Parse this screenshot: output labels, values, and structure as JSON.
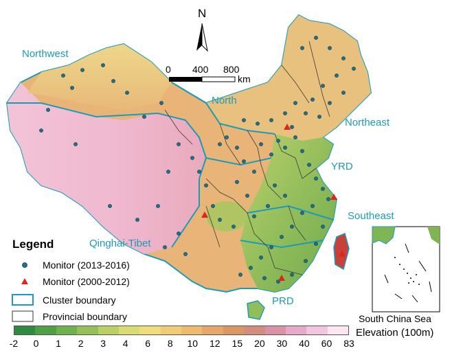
{
  "regions": {
    "northwest": "Northwest",
    "north": "North",
    "northeast": "Northeast",
    "yrd": "YRD",
    "southeast": "Southeast",
    "qinghai_tibet": "Qinghai-Tibet",
    "prd": "PRD"
  },
  "north_arrow": {
    "label": "N"
  },
  "scale_bar": {
    "tick0": "0",
    "tick1": "400",
    "tick2": "800",
    "unit": "km"
  },
  "legend": {
    "title": "Legend",
    "items": [
      {
        "label": "Monitor (2013-2016)",
        "symbol": "circle",
        "color": "#1f6f8b"
      },
      {
        "label": "Monitor (2000-2012)",
        "symbol": "triangle",
        "color": "#e0241e"
      },
      {
        "label": "Cluster boundary",
        "symbol": "box",
        "color": "#1a9bb7"
      },
      {
        "label": "Provincial boundary",
        "symbol": "box",
        "color": "#333333"
      }
    ]
  },
  "inset": {
    "caption": "South China Sea"
  },
  "colorbar": {
    "label": "Elevation (100m)",
    "ticks": [
      "-2",
      "0",
      "1",
      "2",
      "3",
      "4",
      "6",
      "8",
      "10",
      "12",
      "15",
      "20",
      "30",
      "40",
      "60",
      "83"
    ],
    "colors": [
      "#2e8b3e",
      "#4f9f45",
      "#6fb24d",
      "#93c157",
      "#b8d064",
      "#d9dc70",
      "#eedd7a",
      "#f1cc74",
      "#eeba6e",
      "#e6a768",
      "#dc9664",
      "#d48c7c",
      "#d992a6",
      "#e6a9c6",
      "#f2c6de",
      "#fbe6f1"
    ]
  }
}
